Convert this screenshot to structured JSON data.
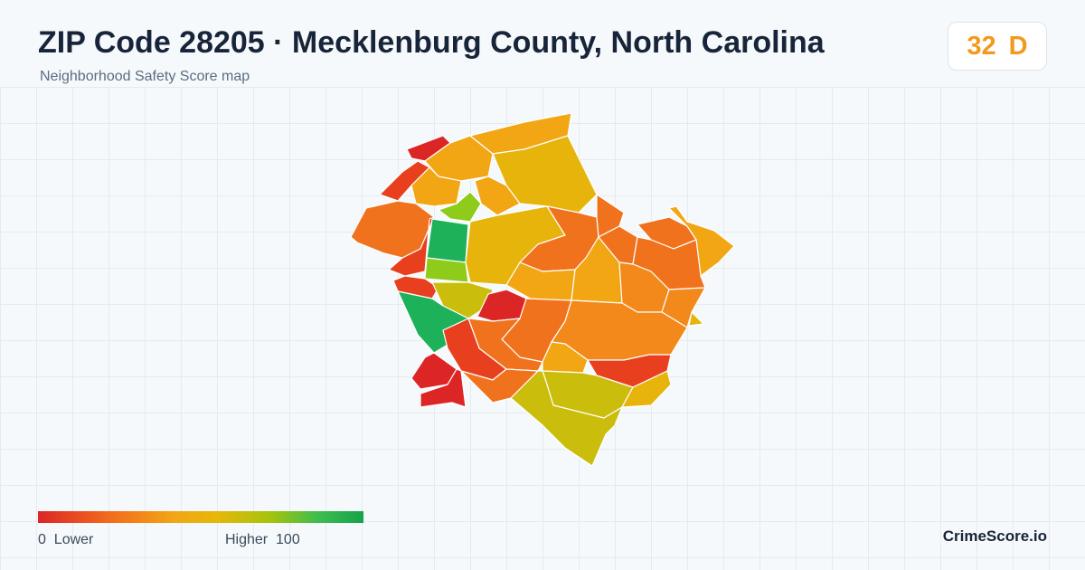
{
  "header": {
    "title": "ZIP Code 28205 · Mecklenburg County, North Carolina",
    "subtitle": "Neighborhood Safety Score map"
  },
  "score": {
    "value": "32",
    "grade": "D",
    "color": "#f39a1c"
  },
  "legend": {
    "min": "0",
    "min_label": "Lower",
    "max": "100",
    "max_label": "Higher",
    "colors": [
      "#dc2626",
      "#f26b1d",
      "#f2a614",
      "#e6b80a",
      "#a3c30d",
      "#3ebd4e",
      "#16a34a"
    ]
  },
  "brand": "CrimeScore.io",
  "map": {
    "region": "28205",
    "neighborhood_colors": {
      "red": "#dc2626",
      "red_orange": "#e8401f",
      "orange": "#f0721d",
      "orange_light": "#f2891a",
      "amber": "#f2a614",
      "gold": "#e6b40b",
      "olive": "#cbbd0c",
      "lime": "#8fcb1a",
      "green": "#1db25a"
    }
  }
}
